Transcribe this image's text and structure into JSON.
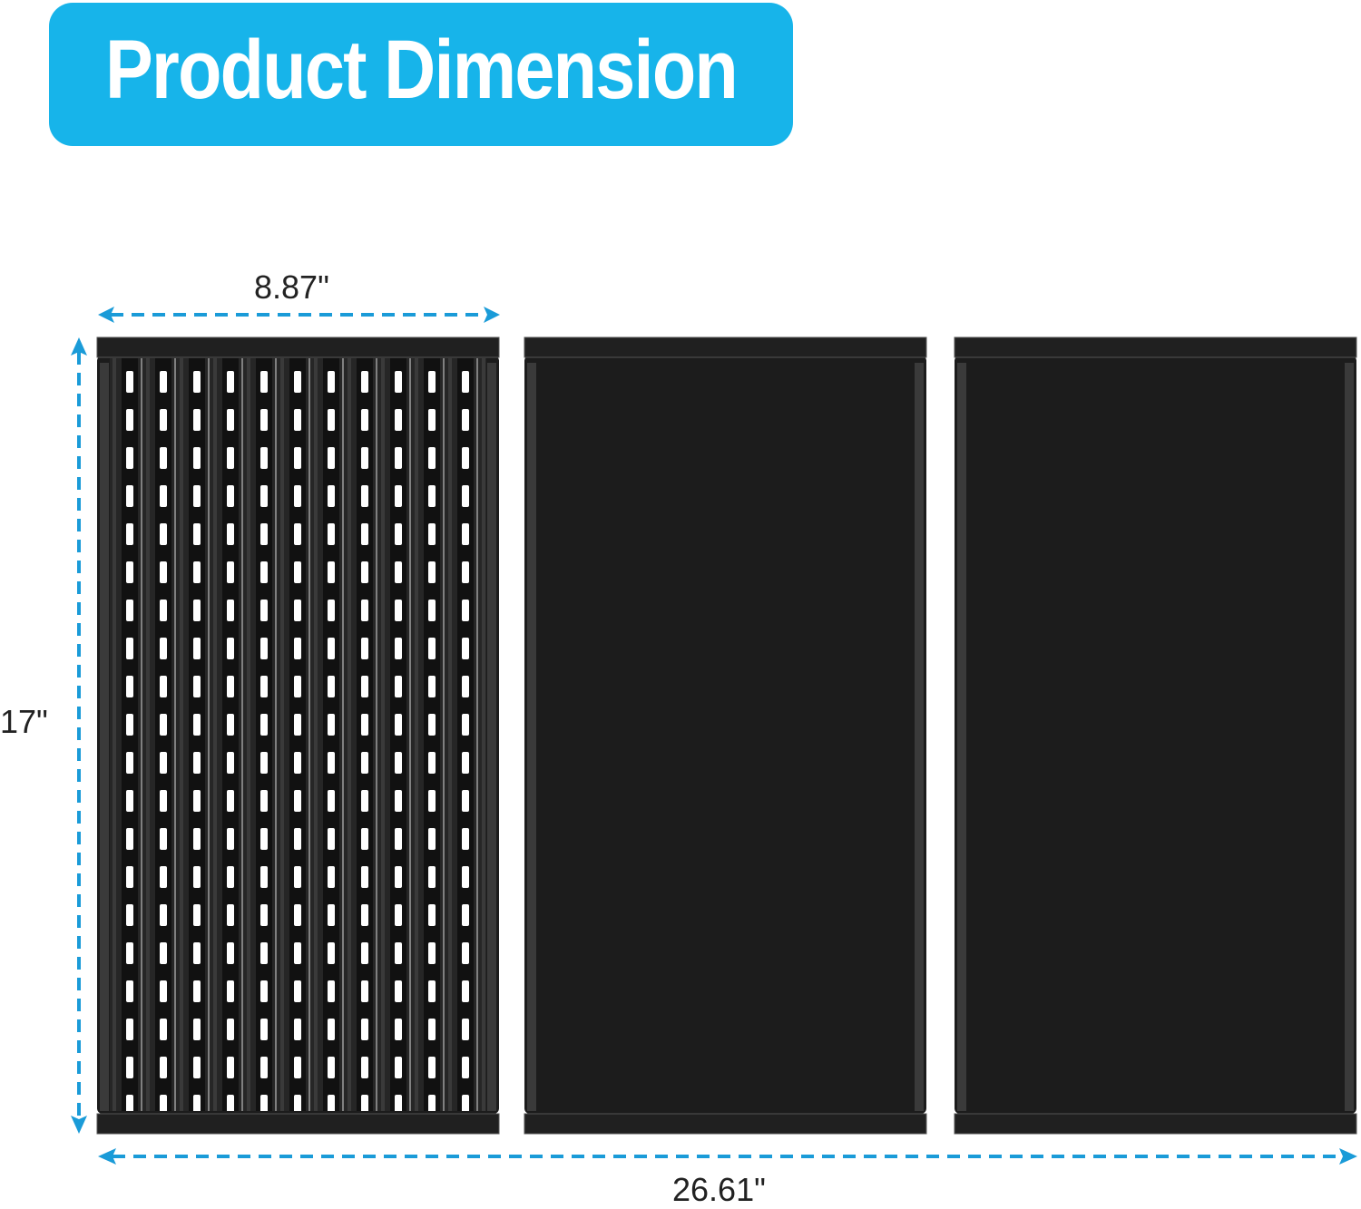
{
  "banner": {
    "title": "Product Dimension",
    "color": "#17b4ea"
  },
  "dimensions": {
    "width_single": "8.87\"",
    "height": "17\"",
    "width_total": "26.61\"",
    "arrow_color": "#1a9bd8"
  },
  "product": {
    "grate_count": 3,
    "color": "#1c1c1c"
  }
}
